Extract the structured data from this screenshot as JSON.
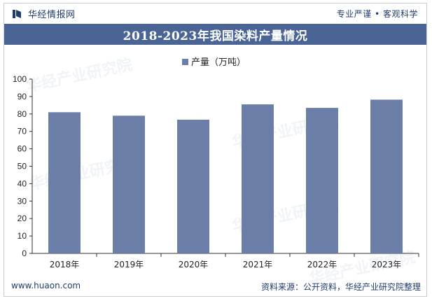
{
  "header": {
    "brand_name": "华经情报网",
    "tagline": "专业严谨 • 客观科学"
  },
  "footer": {
    "website": "www.huaon.com",
    "source": "资料来源：公开资料，华经产业研究院整理"
  },
  "chart_data": {
    "type": "bar",
    "title": "2018-2023年我国染料产量情况",
    "categories": [
      "2018年",
      "2019年",
      "2020年",
      "2021年",
      "2022年",
      "2023年"
    ],
    "series": [
      {
        "name": "产量（万吨）",
        "values": [
          81,
          79,
          76.7,
          85.5,
          83.5,
          88.2
        ],
        "color": "#6a7ea8"
      }
    ],
    "ylim": [
      0,
      100
    ],
    "yticks": [
      0,
      10,
      20,
      30,
      40,
      50,
      60,
      70,
      80,
      90,
      100
    ],
    "grid": false,
    "legend": "top-center"
  }
}
